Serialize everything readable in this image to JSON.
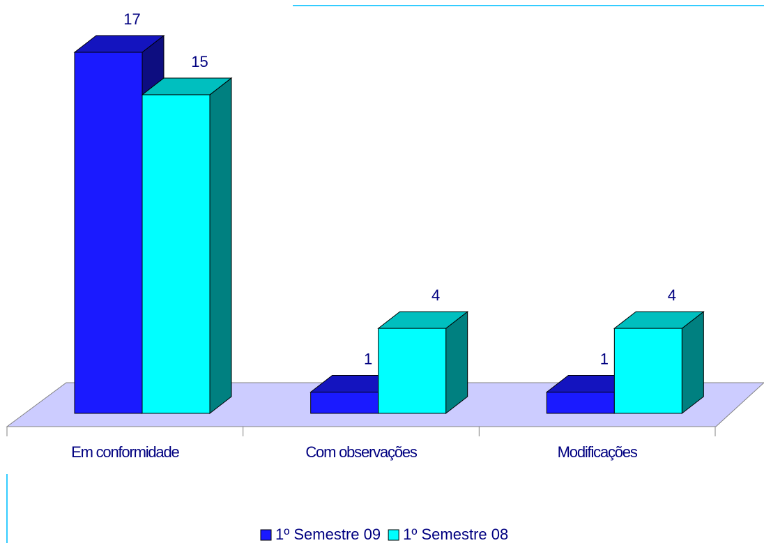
{
  "chart_data": {
    "type": "bar3d",
    "categories": [
      "Em conformidade",
      "Com observações",
      "Modificações"
    ],
    "series": [
      {
        "name": "1º Semestre 09",
        "color": "#1a1aff",
        "values": [
          17,
          1,
          1
        ]
      },
      {
        "name": "1º Semestre 08",
        "color": "#00ffff",
        "values": [
          15,
          4,
          4
        ]
      }
    ]
  }
}
